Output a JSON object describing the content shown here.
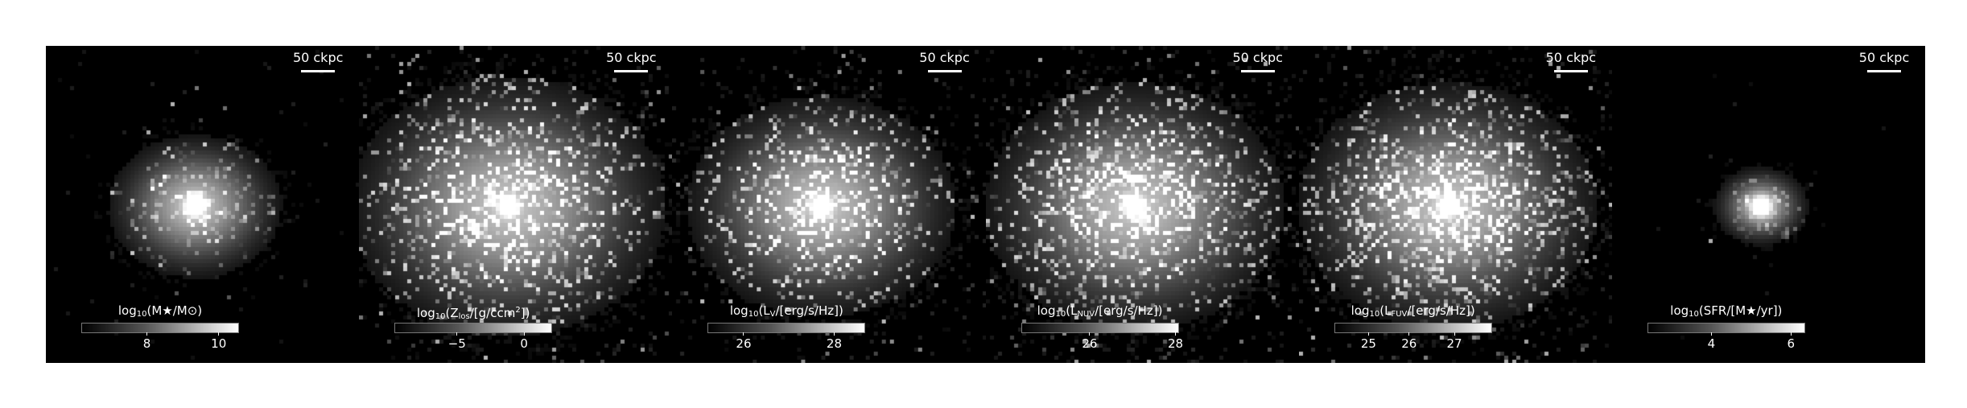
{
  "scalebar_text": "50 ckpc",
  "panels": [
    {
      "colorbar": {
        "label_pre": "log",
        "label_sub": "10",
        "label_post": "(M★/M⊙)",
        "ticks": [
          "8",
          "10"
        ],
        "tick_positions": [
          0.42,
          0.88
        ]
      },
      "map": {
        "core": 1.0,
        "extent": 0.55,
        "noise": 0.12
      }
    },
    {
      "colorbar": {
        "label_pre": "log",
        "label_sub": "10",
        "label_post": "(Z",
        "label_sub2": "los",
        "label_post2": "/[g/ccm",
        "label_sup": "2",
        "label_post3": "])",
        "ticks": [
          "−5",
          "0"
        ],
        "tick_positions": [
          0.4,
          0.83
        ]
      },
      "map": {
        "core": 0.9,
        "extent": 1.0,
        "noise": 0.55
      }
    },
    {
      "colorbar": {
        "label_pre": "log",
        "label_sub": "10",
        "label_post": "(L",
        "label_sub2": "V",
        "label_post2": "/[erg/s/Hz])",
        "ticks": [
          "26",
          "28"
        ],
        "tick_positions": [
          0.23,
          0.81
        ]
      },
      "map": {
        "core": 0.95,
        "extent": 0.85,
        "noise": 0.45
      }
    },
    {
      "colorbar": {
        "label_pre": "log",
        "label_sub": "10",
        "label_post": "(L",
        "label_sub2": "NUV",
        "label_post2": "/[erg/s/Hz])",
        "ticks": [
          "26",
          "28"
        ],
        "tick_positions": [
          0.44,
          0.99
        ]
      },
      "map": {
        "core": 0.9,
        "extent": 0.95,
        "noise": 0.6
      }
    },
    {
      "colorbar": {
        "label_pre": "log",
        "label_sub": "10",
        "label_post": "(L",
        "label_sub2": "FUV",
        "label_post2": "/[erg/s/Hz])",
        "ticks": [
          "25",
          "26",
          "27"
        ],
        "tick_positions": [
          0.22,
          0.48,
          0.77
        ]
      },
      "map": {
        "core": 0.85,
        "extent": 0.95,
        "noise": 0.65
      }
    },
    {
      "colorbar": {
        "label_pre": "log",
        "label_sub": "10",
        "label_post": "(SFR/[M★/yr])",
        "ticks": [
          "4",
          "6"
        ],
        "tick_positions": [
          0.41,
          0.92
        ]
      },
      "map": {
        "core": 0.9,
        "extent": 0.3,
        "noise": 0.05
      }
    }
  ]
}
